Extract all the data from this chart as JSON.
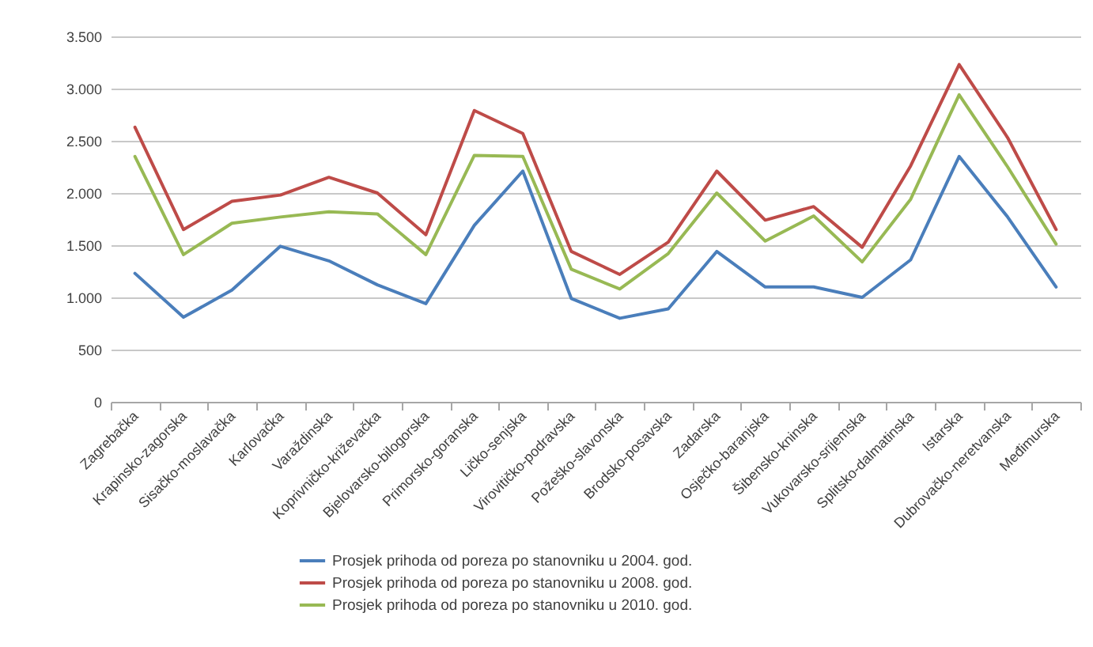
{
  "chart_data": {
    "type": "line",
    "categories": [
      "Zagrebačka",
      "Krapinsko-zagorska",
      "Sisačko-moslavačka",
      "Karlovačka",
      "Varaždinska",
      "Koprivničko-križevačka",
      "Bjelovarsko-bilogorska",
      "Primorsko-goranska",
      "Ličko-senjska",
      "Virovitičko-podravska",
      "Požeško-slavonska",
      "Brodsko-posavska",
      "Zadarska",
      "Osječko-baranjska",
      "Šibensko-kninska",
      "Vukovarsko-srijemska",
      "Splitsko-dalmatinska",
      "Istarska",
      "Dubrovačko-neretvanska",
      "Međimurska"
    ],
    "series": [
      {
        "name": "Prosjek prihoda od poreza po stanovniku u 2004. god.",
        "color": "#4a7ebb",
        "values": [
          1230,
          810,
          1070,
          1490,
          1350,
          1120,
          940,
          1690,
          2210,
          990,
          800,
          890,
          1440,
          1100,
          1100,
          1000,
          1360,
          2350,
          1770,
          1100
        ]
      },
      {
        "name": "Prosjek prihoda od poreza po stanovniku u 2008. god.",
        "color": "#be4b48",
        "values": [
          2630,
          1650,
          1920,
          1980,
          2150,
          2000,
          1600,
          2790,
          2570,
          1440,
          1220,
          1530,
          2210,
          1740,
          1870,
          1480,
          2260,
          3230,
          2530,
          1650
        ]
      },
      {
        "name": "Prosjek prihoda od poreza po stanovniku u 2010. god.",
        "color": "#98b954",
        "values": [
          2350,
          1410,
          1710,
          1770,
          1820,
          1800,
          1410,
          2360,
          2350,
          1270,
          1080,
          1420,
          2000,
          1540,
          1780,
          1340,
          1940,
          2940,
          2250,
          1510
        ]
      }
    ],
    "ylim": [
      0,
      3500
    ],
    "yticks": [
      0,
      500,
      {
        "value": 1000,
        "label": "1.000"
      },
      {
        "value": 1500,
        "label": "1.500"
      },
      {
        "value": 2000,
        "label": "2.000"
      },
      {
        "value": 2500,
        "label": "2.500"
      },
      {
        "value": 3000,
        "label": "3.000"
      },
      {
        "value": 3500,
        "label": "3.500"
      }
    ],
    "grid": "y",
    "legend": "bottom",
    "line_style": "solid"
  }
}
